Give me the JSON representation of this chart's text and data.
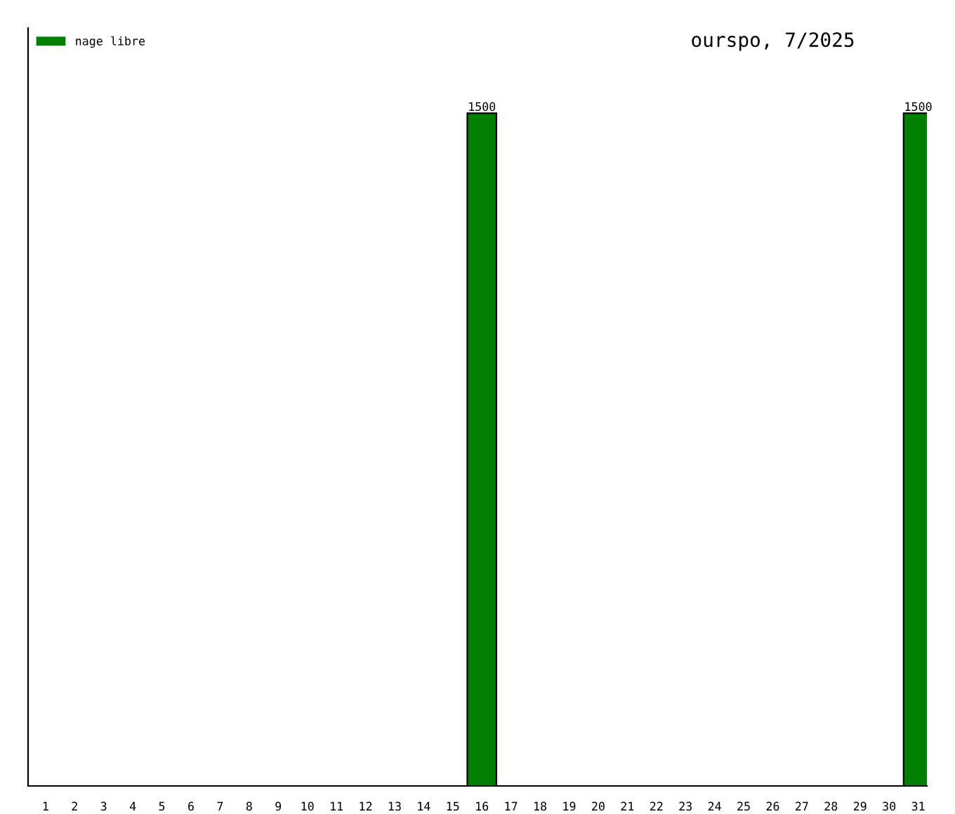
{
  "chart_data": {
    "type": "bar",
    "title": "ourspo, 7/2025",
    "categories": [
      "1",
      "2",
      "3",
      "4",
      "5",
      "6",
      "7",
      "8",
      "9",
      "10",
      "11",
      "12",
      "13",
      "14",
      "15",
      "16",
      "17",
      "18",
      "19",
      "20",
      "21",
      "22",
      "23",
      "24",
      "25",
      "26",
      "27",
      "28",
      "29",
      "30",
      "31"
    ],
    "series": [
      {
        "name": "nage libre",
        "color": "#008000",
        "values": [
          null,
          null,
          null,
          null,
          null,
          null,
          null,
          null,
          null,
          null,
          null,
          null,
          null,
          null,
          null,
          1500,
          null,
          null,
          null,
          null,
          null,
          null,
          null,
          null,
          null,
          null,
          null,
          null,
          null,
          null,
          1500
        ]
      }
    ],
    "data_labels": true,
    "ylim": [
      0,
      1690
    ],
    "tick_labels": "x",
    "grid": false,
    "legend": "top left"
  }
}
